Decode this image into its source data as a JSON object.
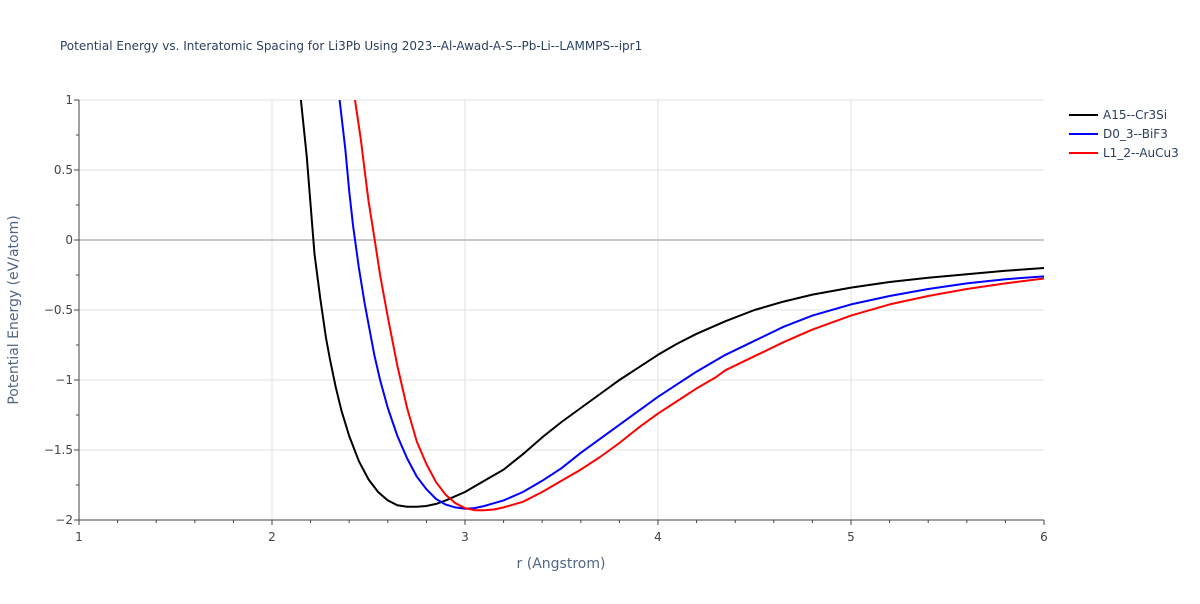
{
  "chart_data": {
    "type": "line",
    "title": "Potential Energy vs. Interatomic Spacing for Li3Pb Using 2023--Al-Awad-A-S--Pb-Li--LAMMPS--ipr1",
    "xlabel": "r (Angstrom)",
    "ylabel": "Potential Energy (eV/atom)",
    "xlim": [
      1,
      6
    ],
    "ylim": [
      -2,
      1
    ],
    "xticks": [
      1,
      2,
      3,
      4,
      5,
      6
    ],
    "yticks": [
      1,
      0.5,
      0,
      -0.5,
      -1,
      -1.5,
      -2
    ],
    "ytick_labels": [
      "1",
      "0.5",
      "0",
      "−0.5",
      "−1",
      "−1.5",
      "−2"
    ],
    "grid": true,
    "legend_position": "top-right",
    "series": [
      {
        "name": "A15--Cr3Si",
        "color": "#000000",
        "x": [
          2.15,
          2.18,
          2.2,
          2.22,
          2.25,
          2.28,
          2.3,
          2.33,
          2.36,
          2.4,
          2.45,
          2.5,
          2.55,
          2.6,
          2.65,
          2.7,
          2.75,
          2.8,
          2.85,
          2.9,
          2.95,
          3.0,
          3.05,
          3.1,
          3.2,
          3.3,
          3.4,
          3.5,
          3.6,
          3.7,
          3.8,
          3.9,
          4.0,
          4.1,
          4.2,
          4.35,
          4.5,
          4.65,
          4.8,
          5.0,
          5.2,
          5.4,
          5.6,
          5.8,
          6.0
        ],
        "y": [
          1.0,
          0.6,
          0.25,
          -0.1,
          -0.42,
          -0.7,
          -0.85,
          -1.05,
          -1.22,
          -1.4,
          -1.58,
          -1.71,
          -1.8,
          -1.86,
          -1.895,
          -1.905,
          -1.905,
          -1.9,
          -1.885,
          -1.86,
          -1.83,
          -1.8,
          -1.76,
          -1.72,
          -1.64,
          -1.53,
          -1.41,
          -1.3,
          -1.2,
          -1.1,
          -1.0,
          -0.91,
          -0.82,
          -0.74,
          -0.67,
          -0.58,
          -0.5,
          -0.44,
          -0.39,
          -0.34,
          -0.3,
          -0.27,
          -0.245,
          -0.22,
          -0.2
        ]
      },
      {
        "name": "D0_3--BiF3",
        "color": "#0000ff",
        "x": [
          2.35,
          2.38,
          2.4,
          2.42,
          2.45,
          2.48,
          2.5,
          2.53,
          2.56,
          2.6,
          2.65,
          2.7,
          2.75,
          2.8,
          2.85,
          2.9,
          2.95,
          3.0,
          3.05,
          3.1,
          3.15,
          3.2,
          3.3,
          3.4,
          3.5,
          3.6,
          3.7,
          3.8,
          3.9,
          4.0,
          4.1,
          4.2,
          4.35,
          4.5,
          4.65,
          4.8,
          5.0,
          5.2,
          5.4,
          5.6,
          5.8,
          6.0
        ],
        "y": [
          1.0,
          0.65,
          0.35,
          0.1,
          -0.2,
          -0.45,
          -0.6,
          -0.82,
          -1.0,
          -1.2,
          -1.4,
          -1.56,
          -1.69,
          -1.78,
          -1.85,
          -1.89,
          -1.91,
          -1.92,
          -1.915,
          -1.9,
          -1.88,
          -1.86,
          -1.8,
          -1.72,
          -1.63,
          -1.52,
          -1.42,
          -1.32,
          -1.22,
          -1.12,
          -1.03,
          -0.94,
          -0.82,
          -0.72,
          -0.62,
          -0.54,
          -0.46,
          -0.4,
          -0.35,
          -0.31,
          -0.28,
          -0.26
        ]
      },
      {
        "name": "L1_2--AuCu3",
        "color": "#ff0000",
        "x": [
          2.43,
          2.46,
          2.48,
          2.5,
          2.53,
          2.56,
          2.6,
          2.65,
          2.7,
          2.75,
          2.8,
          2.85,
          2.9,
          2.95,
          3.0,
          3.05,
          3.1,
          3.15,
          3.2,
          3.3,
          3.4,
          3.5,
          3.6,
          3.7,
          3.8,
          3.9,
          4.0,
          4.1,
          4.2,
          4.3,
          4.35,
          4.5,
          4.65,
          4.8,
          5.0,
          5.2,
          5.4,
          5.6,
          5.8,
          6.0
        ],
        "y": [
          1.0,
          0.72,
          0.5,
          0.28,
          0.02,
          -0.25,
          -0.55,
          -0.9,
          -1.2,
          -1.44,
          -1.6,
          -1.73,
          -1.82,
          -1.88,
          -1.915,
          -1.93,
          -1.93,
          -1.925,
          -1.91,
          -1.87,
          -1.8,
          -1.72,
          -1.64,
          -1.55,
          -1.45,
          -1.34,
          -1.24,
          -1.15,
          -1.06,
          -0.98,
          -0.93,
          -0.83,
          -0.73,
          -0.64,
          -0.54,
          -0.46,
          -0.4,
          -0.35,
          -0.31,
          -0.275
        ]
      }
    ]
  }
}
